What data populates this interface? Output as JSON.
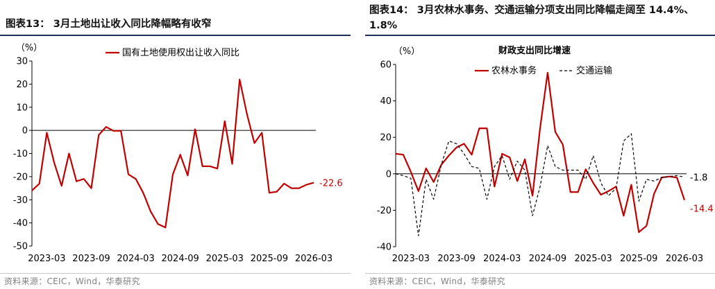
{
  "panels": [
    {
      "title": "图表13： 3月土地出让收入同比降幅略有收窄",
      "source": "资料来源：CEIC，Wind，华泰研究",
      "chart_data": {
        "type": "line",
        "title": "",
        "unit_label": "（%）",
        "xlabel": "",
        "ylabel": "",
        "ylim": [
          -50,
          30
        ],
        "yticks": [
          30,
          20,
          10,
          0,
          -10,
          -20,
          -30,
          -40,
          -50
        ],
        "xlim": [
          "2023-01",
          "2026-03"
        ],
        "x_tick_labels": [
          "2023-03",
          "2023-09",
          "2024-03",
          "2024-09",
          "2025-03",
          "2025-09",
          "2026-03"
        ],
        "grid": false,
        "legend_position": "top-center",
        "series": [
          {
            "name": "国有土地使用权出让收入同比",
            "color": "#c00000",
            "style": "solid",
            "end_label": "-22.6",
            "x": [
              "2023-01",
              "2023-02",
              "2023-03",
              "2023-04",
              "2023-05",
              "2023-06",
              "2023-07",
              "2023-08",
              "2023-09",
              "2023-10",
              "2023-11",
              "2023-12",
              "2024-01",
              "2024-02",
              "2024-03",
              "2024-04",
              "2024-05",
              "2024-06",
              "2024-07",
              "2024-08",
              "2024-09",
              "2024-10",
              "2024-11",
              "2024-12",
              "2025-01",
              "2025-02",
              "2025-03",
              "2025-04",
              "2025-05",
              "2025-06",
              "2025-07",
              "2025-08",
              "2025-09",
              "2025-10",
              "2025-11",
              "2025-12",
              "2026-01",
              "2026-02",
              "2026-03"
            ],
            "values": [
              -26,
              -23,
              -1,
              -14,
              -24,
              -10,
              -22,
              -21,
              -25,
              -2,
              1.5,
              -0.2,
              -0.2,
              -19,
              -21,
              -27,
              -35,
              -40.5,
              -42,
              -19,
              -10.5,
              -19.5,
              0.5,
              -15.5,
              -15.5,
              -16.5,
              4,
              -14.5,
              22,
              7,
              -5.5,
              -1,
              -27,
              -26.5,
              -23,
              -25,
              -25,
              -23.5,
              -22.6
            ]
          }
        ]
      }
    },
    {
      "title": "图表14： 3月农林水事务、交通运输分项支出同比降幅走阔至 14.4%、1.8%",
      "source": "资料来源：CEIC，Wind，华泰研究",
      "chart_data": {
        "type": "line",
        "title": "财政支出同比增速",
        "unit_label": "（%）",
        "xlabel": "",
        "ylabel": "",
        "ylim": [
          -40,
          60
        ],
        "yticks": [
          60,
          40,
          20,
          0,
          -20,
          -40
        ],
        "xlim": [
          "2023-01",
          "2026-03"
        ],
        "x_tick_labels": [
          "2023-03",
          "2023-09",
          "2024-03",
          "2024-09",
          "2025-03",
          "2025-09",
          "2026-03"
        ],
        "grid": false,
        "legend_position": "top-center",
        "series": [
          {
            "name": "农林水事务",
            "color": "#c00000",
            "style": "solid",
            "end_label": "-14.4",
            "x": [
              "2023-01",
              "2023-02",
              "2023-03",
              "2023-04",
              "2023-05",
              "2023-06",
              "2023-07",
              "2023-08",
              "2023-09",
              "2023-10",
              "2023-11",
              "2023-12",
              "2024-01",
              "2024-02",
              "2024-03",
              "2024-04",
              "2024-05",
              "2024-06",
              "2024-07",
              "2024-08",
              "2024-09",
              "2024-10",
              "2024-11",
              "2024-12",
              "2025-01",
              "2025-02",
              "2025-03",
              "2025-04",
              "2025-05",
              "2025-06",
              "2025-07",
              "2025-08",
              "2025-09",
              "2025-10",
              "2025-11",
              "2025-12",
              "2026-01",
              "2026-02",
              "2026-03"
            ],
            "values": [
              11,
              10.5,
              1,
              -9.5,
              3,
              -4.5,
              5,
              10,
              14.5,
              16.5,
              10.5,
              25,
              25,
              -7,
              11,
              9,
              -4,
              8,
              -12,
              25,
              55.5,
              23,
              16,
              -10,
              -10,
              2.5,
              -5,
              -11.5,
              -9.5,
              -7,
              -23,
              -6,
              -32,
              -28.5,
              -11,
              -2,
              -1.5,
              -2,
              -14.4
            ]
          },
          {
            "name": "交通运输",
            "color": "#000000",
            "style": "dashed",
            "end_label": "-1.8",
            "x": [
              "2023-01",
              "2023-02",
              "2023-03",
              "2023-04",
              "2023-05",
              "2023-06",
              "2023-07",
              "2023-08",
              "2023-09",
              "2023-10",
              "2023-11",
              "2023-12",
              "2024-01",
              "2024-02",
              "2024-03",
              "2024-04",
              "2024-05",
              "2024-06",
              "2024-07",
              "2024-08",
              "2024-09",
              "2024-10",
              "2024-11",
              "2024-12",
              "2025-01",
              "2025-02",
              "2025-03",
              "2025-04",
              "2025-05",
              "2025-06",
              "2025-07",
              "2025-08",
              "2025-09",
              "2025-10",
              "2025-11",
              "2025-12",
              "2026-01",
              "2026-02",
              "2026-03"
            ],
            "values": [
              0,
              -1,
              -2.5,
              -34,
              -3,
              -14,
              5,
              18,
              16.5,
              11,
              4,
              3,
              -14,
              4,
              10,
              -3,
              7,
              2,
              -23,
              -7,
              15.5,
              4,
              2,
              2,
              2,
              -3,
              10,
              -5,
              -12,
              -8,
              18,
              22,
              -15,
              -3,
              -4,
              -2,
              -1.5,
              -1,
              -1.8
            ]
          }
        ]
      }
    }
  ]
}
